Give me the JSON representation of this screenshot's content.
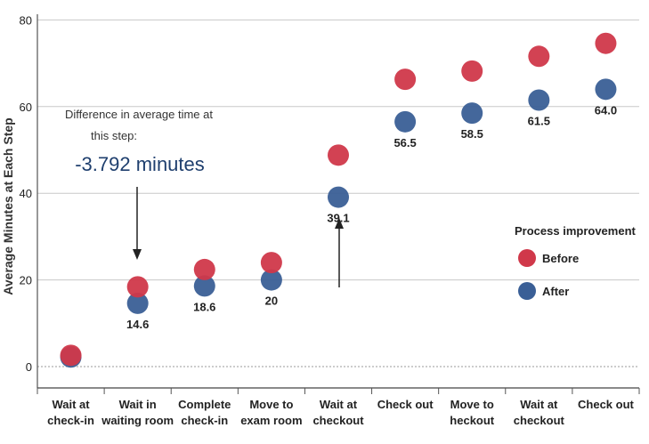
{
  "chart_data": {
    "type": "scatter",
    "ylabel": "Average Minutes at Each Step",
    "xlabel": "",
    "title": "",
    "ylim": [
      0,
      80
    ],
    "yticks": [
      0,
      20,
      40,
      60,
      80
    ],
    "grid": true,
    "legend_position": "right",
    "legend_title": "Process improvement",
    "categories": [
      [
        "Wait at",
        "check-in"
      ],
      [
        "Wait in",
        "waiting room"
      ],
      [
        "Complete",
        "check-in"
      ],
      [
        "Move to",
        "exam room"
      ],
      [
        "Wait at",
        "checkout"
      ],
      [
        "Check out",
        ""
      ],
      [
        "Move to",
        "heckout"
      ],
      [
        "Wait at",
        "checkout"
      ],
      [
        "Check out",
        ""
      ]
    ],
    "series": [
      {
        "name": "Before",
        "color": "#d0384a",
        "values": [
          2.6,
          18.4,
          22.4,
          24.0,
          48.8,
          66.3,
          68.2,
          71.6,
          74.6
        ]
      },
      {
        "name": "After",
        "color": "#3a5f96",
        "values": [
          2.2,
          14.6,
          18.6,
          20.0,
          39.1,
          56.5,
          58.5,
          61.5,
          64.0
        ]
      }
    ],
    "data_labels": [
      "",
      "14.6",
      "18.6",
      "20",
      "39.1",
      "56.5",
      "58.5",
      "61.5",
      "64.0"
    ],
    "annotation": {
      "line1": "Difference in average time at",
      "line2": "this step:",
      "value": "-3.792 minutes"
    }
  }
}
